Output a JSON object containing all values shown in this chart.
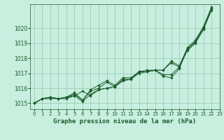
{
  "title": "Graphe pression niveau de la mer (hPa)",
  "background_color": "#c8eee0",
  "grid_color": "#90c8b0",
  "line_color": "#1a5c2a",
  "xlim": [
    -0.5,
    23
  ],
  "ylim": [
    1014.6,
    1021.6
  ],
  "xticks": [
    0,
    1,
    2,
    3,
    4,
    5,
    6,
    7,
    8,
    9,
    10,
    11,
    12,
    13,
    14,
    15,
    16,
    17,
    18,
    19,
    20,
    21,
    22,
    23
  ],
  "yticks": [
    1015,
    1016,
    1017,
    1018,
    1019,
    1020
  ],
  "series": [
    [
      1015.0,
      1015.3,
      1015.3,
      1015.3,
      1015.3,
      1015.5,
      1015.8,
      1015.5,
      1015.9,
      1016.0,
      1016.1,
      1016.5,
      1016.6,
      1017.1,
      1017.1,
      1017.2,
      1017.2,
      1017.8,
      1017.5,
      1018.6,
      1019.1,
      1020.0,
      1021.3
    ],
    [
      1015.0,
      1015.3,
      1015.4,
      1015.3,
      1015.4,
      1015.6,
      1015.2,
      1015.8,
      1016.0,
      1016.4,
      1016.1,
      1016.6,
      1016.6,
      1017.1,
      1017.1,
      1017.2,
      1016.8,
      1016.7,
      1017.3,
      1018.6,
      1019.1,
      1020.0,
      1021.3
    ],
    [
      1015.0,
      1015.3,
      1015.4,
      1015.3,
      1015.4,
      1015.7,
      1015.2,
      1015.9,
      1016.2,
      1016.5,
      1016.2,
      1016.7,
      1016.7,
      1017.1,
      1017.2,
      1017.2,
      1016.9,
      1016.9,
      1017.4,
      1018.7,
      1019.2,
      1020.1,
      1021.4
    ],
    [
      1015.0,
      1015.3,
      1015.4,
      1015.3,
      1015.4,
      1015.5,
      1015.1,
      1015.6,
      1015.9,
      1016.0,
      1016.1,
      1016.5,
      1016.6,
      1017.0,
      1017.1,
      1017.2,
      1017.2,
      1017.7,
      1017.4,
      1018.5,
      1019.0,
      1019.9,
      1021.2
    ]
  ],
  "x_values": [
    0,
    1,
    2,
    3,
    4,
    5,
    6,
    7,
    8,
    9,
    10,
    11,
    12,
    13,
    14,
    15,
    16,
    17,
    18,
    19,
    20,
    21,
    22
  ]
}
